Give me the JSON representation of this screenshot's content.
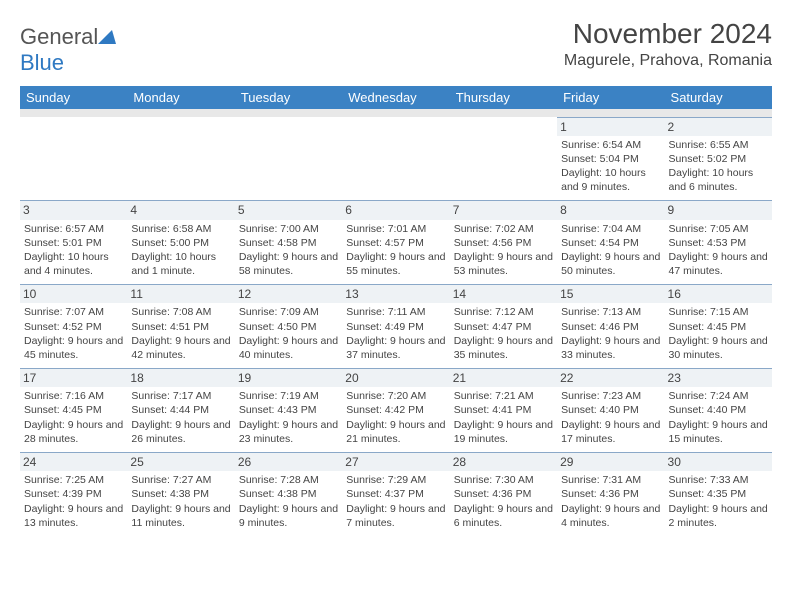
{
  "logo": {
    "word1": "General",
    "word2": "Blue"
  },
  "title": "November 2024",
  "location": "Magurele, Prahova, Romania",
  "colors": {
    "header_bg": "#3b82c4",
    "header_text": "#ffffff",
    "sub_row_bg": "#e8e8e8",
    "daynum_bg": "#eef2f5",
    "row_border": "#8aa8c8",
    "text": "#444444",
    "logo_blue": "#2f79c2"
  },
  "weekdays": [
    "Sunday",
    "Monday",
    "Tuesday",
    "Wednesday",
    "Thursday",
    "Friday",
    "Saturday"
  ],
  "weeks": [
    [
      {
        "empty": true
      },
      {
        "empty": true
      },
      {
        "empty": true
      },
      {
        "empty": true
      },
      {
        "empty": true
      },
      {
        "n": "1",
        "sr": "Sunrise: 6:54 AM",
        "ss": "Sunset: 5:04 PM",
        "dl": "Daylight: 10 hours and 9 minutes."
      },
      {
        "n": "2",
        "sr": "Sunrise: 6:55 AM",
        "ss": "Sunset: 5:02 PM",
        "dl": "Daylight: 10 hours and 6 minutes."
      }
    ],
    [
      {
        "n": "3",
        "sr": "Sunrise: 6:57 AM",
        "ss": "Sunset: 5:01 PM",
        "dl": "Daylight: 10 hours and 4 minutes."
      },
      {
        "n": "4",
        "sr": "Sunrise: 6:58 AM",
        "ss": "Sunset: 5:00 PM",
        "dl": "Daylight: 10 hours and 1 minute."
      },
      {
        "n": "5",
        "sr": "Sunrise: 7:00 AM",
        "ss": "Sunset: 4:58 PM",
        "dl": "Daylight: 9 hours and 58 minutes."
      },
      {
        "n": "6",
        "sr": "Sunrise: 7:01 AM",
        "ss": "Sunset: 4:57 PM",
        "dl": "Daylight: 9 hours and 55 minutes."
      },
      {
        "n": "7",
        "sr": "Sunrise: 7:02 AM",
        "ss": "Sunset: 4:56 PM",
        "dl": "Daylight: 9 hours and 53 minutes."
      },
      {
        "n": "8",
        "sr": "Sunrise: 7:04 AM",
        "ss": "Sunset: 4:54 PM",
        "dl": "Daylight: 9 hours and 50 minutes."
      },
      {
        "n": "9",
        "sr": "Sunrise: 7:05 AM",
        "ss": "Sunset: 4:53 PM",
        "dl": "Daylight: 9 hours and 47 minutes."
      }
    ],
    [
      {
        "n": "10",
        "sr": "Sunrise: 7:07 AM",
        "ss": "Sunset: 4:52 PM",
        "dl": "Daylight: 9 hours and 45 minutes."
      },
      {
        "n": "11",
        "sr": "Sunrise: 7:08 AM",
        "ss": "Sunset: 4:51 PM",
        "dl": "Daylight: 9 hours and 42 minutes."
      },
      {
        "n": "12",
        "sr": "Sunrise: 7:09 AM",
        "ss": "Sunset: 4:50 PM",
        "dl": "Daylight: 9 hours and 40 minutes."
      },
      {
        "n": "13",
        "sr": "Sunrise: 7:11 AM",
        "ss": "Sunset: 4:49 PM",
        "dl": "Daylight: 9 hours and 37 minutes."
      },
      {
        "n": "14",
        "sr": "Sunrise: 7:12 AM",
        "ss": "Sunset: 4:47 PM",
        "dl": "Daylight: 9 hours and 35 minutes."
      },
      {
        "n": "15",
        "sr": "Sunrise: 7:13 AM",
        "ss": "Sunset: 4:46 PM",
        "dl": "Daylight: 9 hours and 33 minutes."
      },
      {
        "n": "16",
        "sr": "Sunrise: 7:15 AM",
        "ss": "Sunset: 4:45 PM",
        "dl": "Daylight: 9 hours and 30 minutes."
      }
    ],
    [
      {
        "n": "17",
        "sr": "Sunrise: 7:16 AM",
        "ss": "Sunset: 4:45 PM",
        "dl": "Daylight: 9 hours and 28 minutes."
      },
      {
        "n": "18",
        "sr": "Sunrise: 7:17 AM",
        "ss": "Sunset: 4:44 PM",
        "dl": "Daylight: 9 hours and 26 minutes."
      },
      {
        "n": "19",
        "sr": "Sunrise: 7:19 AM",
        "ss": "Sunset: 4:43 PM",
        "dl": "Daylight: 9 hours and 23 minutes."
      },
      {
        "n": "20",
        "sr": "Sunrise: 7:20 AM",
        "ss": "Sunset: 4:42 PM",
        "dl": "Daylight: 9 hours and 21 minutes."
      },
      {
        "n": "21",
        "sr": "Sunrise: 7:21 AM",
        "ss": "Sunset: 4:41 PM",
        "dl": "Daylight: 9 hours and 19 minutes."
      },
      {
        "n": "22",
        "sr": "Sunrise: 7:23 AM",
        "ss": "Sunset: 4:40 PM",
        "dl": "Daylight: 9 hours and 17 minutes."
      },
      {
        "n": "23",
        "sr": "Sunrise: 7:24 AM",
        "ss": "Sunset: 4:40 PM",
        "dl": "Daylight: 9 hours and 15 minutes."
      }
    ],
    [
      {
        "n": "24",
        "sr": "Sunrise: 7:25 AM",
        "ss": "Sunset: 4:39 PM",
        "dl": "Daylight: 9 hours and 13 minutes."
      },
      {
        "n": "25",
        "sr": "Sunrise: 7:27 AM",
        "ss": "Sunset: 4:38 PM",
        "dl": "Daylight: 9 hours and 11 minutes."
      },
      {
        "n": "26",
        "sr": "Sunrise: 7:28 AM",
        "ss": "Sunset: 4:38 PM",
        "dl": "Daylight: 9 hours and 9 minutes."
      },
      {
        "n": "27",
        "sr": "Sunrise: 7:29 AM",
        "ss": "Sunset: 4:37 PM",
        "dl": "Daylight: 9 hours and 7 minutes."
      },
      {
        "n": "28",
        "sr": "Sunrise: 7:30 AM",
        "ss": "Sunset: 4:36 PM",
        "dl": "Daylight: 9 hours and 6 minutes."
      },
      {
        "n": "29",
        "sr": "Sunrise: 7:31 AM",
        "ss": "Sunset: 4:36 PM",
        "dl": "Daylight: 9 hours and 4 minutes."
      },
      {
        "n": "30",
        "sr": "Sunrise: 7:33 AM",
        "ss": "Sunset: 4:35 PM",
        "dl": "Daylight: 9 hours and 2 minutes."
      }
    ]
  ]
}
